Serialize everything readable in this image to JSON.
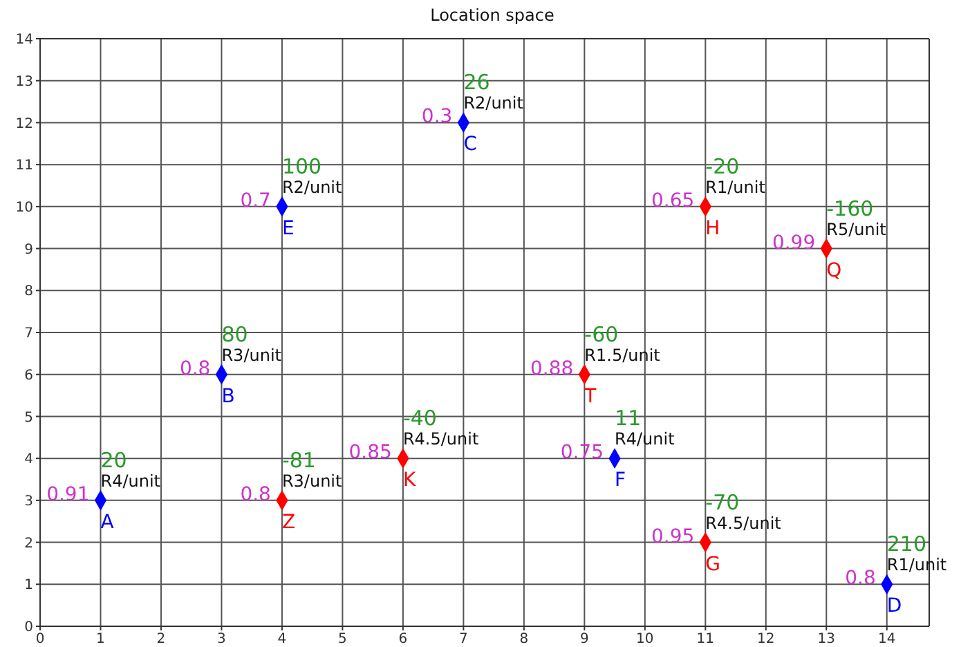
{
  "chart_data": {
    "type": "scatter",
    "title": "Location space",
    "marker": "diamond",
    "grid": true,
    "xlim": [
      0,
      14.7
    ],
    "xticks": [
      0,
      1,
      2,
      3,
      4,
      5,
      6,
      7,
      8,
      9,
      10,
      11,
      12,
      13,
      14
    ],
    "ylim": [
      0,
      14
    ],
    "yticks": [
      0,
      1,
      2,
      3,
      4,
      5,
      6,
      7,
      8,
      9,
      10,
      11,
      12,
      13,
      14
    ],
    "series": [
      {
        "color": "#0000ff",
        "x": [
          1,
          3,
          7,
          14,
          4,
          9.5
        ],
        "values": [
          3,
          6,
          12,
          1,
          10,
          4
        ]
      },
      {
        "color": "#ff0000",
        "x": [
          11,
          11,
          6,
          13,
          9,
          4
        ],
        "values": [
          2,
          10,
          4,
          9,
          6,
          3
        ]
      }
    ],
    "annotations": [
      {
        "text": "A",
        "x": 1,
        "y": 3
      },
      {
        "text": "0.91",
        "x": 1,
        "y": 3
      },
      {
        "text": "20",
        "x": 1,
        "y": 3
      },
      {
        "text": "R4/unit",
        "x": 1,
        "y": 3
      },
      {
        "text": "B",
        "x": 3,
        "y": 6
      },
      {
        "text": "0.8",
        "x": 3,
        "y": 6
      },
      {
        "text": "80",
        "x": 3,
        "y": 6
      },
      {
        "text": "R3/unit",
        "x": 3,
        "y": 6
      },
      {
        "text": "C",
        "x": 7,
        "y": 12
      },
      {
        "text": "0.3",
        "x": 7,
        "y": 12
      },
      {
        "text": "26",
        "x": 7,
        "y": 12
      },
      {
        "text": "R2/unit",
        "x": 7,
        "y": 12
      },
      {
        "text": "D",
        "x": 14,
        "y": 1
      },
      {
        "text": "0.8",
        "x": 14,
        "y": 1
      },
      {
        "text": "210",
        "x": 14,
        "y": 1
      },
      {
        "text": "R1/unit",
        "x": 14,
        "y": 1
      },
      {
        "text": "E",
        "x": 4,
        "y": 10
      },
      {
        "text": "0.7",
        "x": 4,
        "y": 10
      },
      {
        "text": "100",
        "x": 4,
        "y": 10
      },
      {
        "text": "R2/unit",
        "x": 4,
        "y": 10
      },
      {
        "text": "F",
        "x": 9.5,
        "y": 4
      },
      {
        "text": "0.75",
        "x": 9.5,
        "y": 4
      },
      {
        "text": "11",
        "x": 9.5,
        "y": 4
      },
      {
        "text": "R4/unit",
        "x": 9.5,
        "y": 4
      },
      {
        "text": "G",
        "x": 11,
        "y": 2
      },
      {
        "text": "0.95",
        "x": 11,
        "y": 2
      },
      {
        "text": "-70",
        "x": 11,
        "y": 2
      },
      {
        "text": "R4.5/unit",
        "x": 11,
        "y": 2
      },
      {
        "text": "H",
        "x": 11,
        "y": 10
      },
      {
        "text": "0.65",
        "x": 11,
        "y": 10
      },
      {
        "text": "-20",
        "x": 11,
        "y": 10
      },
      {
        "text": "R1/unit",
        "x": 11,
        "y": 10
      },
      {
        "text": "K",
        "x": 6,
        "y": 4
      },
      {
        "text": "0.85",
        "x": 6,
        "y": 4
      },
      {
        "text": "-40",
        "x": 6,
        "y": 4
      },
      {
        "text": "R4.5/unit",
        "x": 6,
        "y": 4
      },
      {
        "text": "Q",
        "x": 13,
        "y": 9
      },
      {
        "text": "0.99",
        "x": 13,
        "y": 9
      },
      {
        "text": "-160",
        "x": 13,
        "y": 9
      },
      {
        "text": "R5/unit",
        "x": 13,
        "y": 9
      },
      {
        "text": "T",
        "x": 9,
        "y": 6
      },
      {
        "text": "0.88",
        "x": 9,
        "y": 6
      },
      {
        "text": "-60",
        "x": 9,
        "y": 6
      },
      {
        "text": "R1.5/unit",
        "x": 9,
        "y": 6
      },
      {
        "text": "Z",
        "x": 4,
        "y": 3
      },
      {
        "text": "0.8",
        "x": 4,
        "y": 3
      },
      {
        "text": "-81",
        "x": 4,
        "y": 3
      },
      {
        "text": "R3/unit",
        "x": 4,
        "y": 3
      }
    ]
  }
}
